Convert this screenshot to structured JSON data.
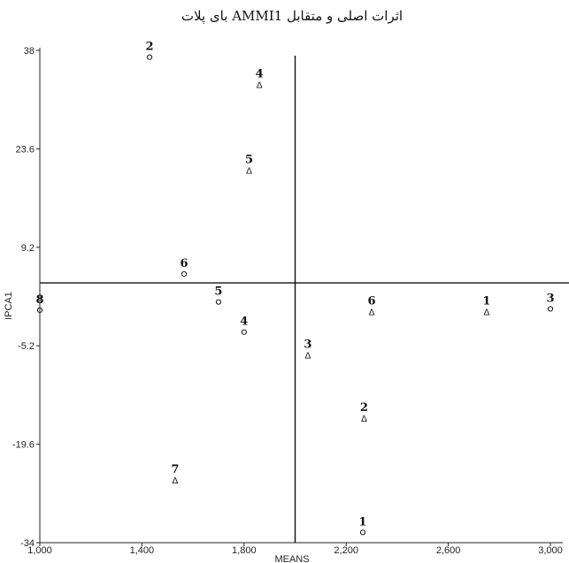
{
  "chart_data": {
    "type": "scatter",
    "title": "بای پلات AMMI1 اثرات اصلی و متقابل",
    "xlabel": "MEANS",
    "ylabel": "IPCA1",
    "xlim": [
      1000,
      3000
    ],
    "ylim": [
      -34,
      38
    ],
    "x_ticks": [
      1000,
      1400,
      1800,
      2200,
      2600,
      3000
    ],
    "x_tick_labels": [
      "1,000",
      "1,400",
      "1,800",
      "2,200",
      "2,600",
      "3,000"
    ],
    "y_ticks": [
      38,
      23.6,
      9.2,
      -5.2,
      -19.6,
      -34
    ],
    "y_tick_labels": [
      "38",
      "23.6",
      "9.2",
      "-5.2",
      "-19.6",
      "-34"
    ],
    "x_reference_line": 2000,
    "y_reference_line": 4.0,
    "grid": false,
    "series": [
      {
        "marker": "circle",
        "points": [
          {
            "label": "2",
            "x": 1430,
            "y": 37.0
          },
          {
            "label": "6",
            "x": 1565,
            "y": 5.3
          },
          {
            "label": "5",
            "x": 1700,
            "y": 1.2
          },
          {
            "label": "4",
            "x": 1800,
            "y": -3.2
          },
          {
            "label": "1",
            "x": 2265,
            "y": -32.5
          },
          {
            "label": "3",
            "x": 3000,
            "y": 0.2
          },
          {
            "label": "8",
            "x": 1000,
            "y": 0.0
          }
        ]
      },
      {
        "marker": "triangle",
        "points": [
          {
            "label": "4",
            "x": 1860,
            "y": 33.0
          },
          {
            "label": "5",
            "x": 1820,
            "y": 20.5
          },
          {
            "label": "6",
            "x": 2300,
            "y": -0.2
          },
          {
            "label": "1",
            "x": 2750,
            "y": -0.2
          },
          {
            "label": "3",
            "x": 2050,
            "y": -6.5
          },
          {
            "label": "2",
            "x": 2270,
            "y": -15.8
          },
          {
            "label": "7",
            "x": 1530,
            "y": -24.8
          }
        ]
      }
    ]
  }
}
